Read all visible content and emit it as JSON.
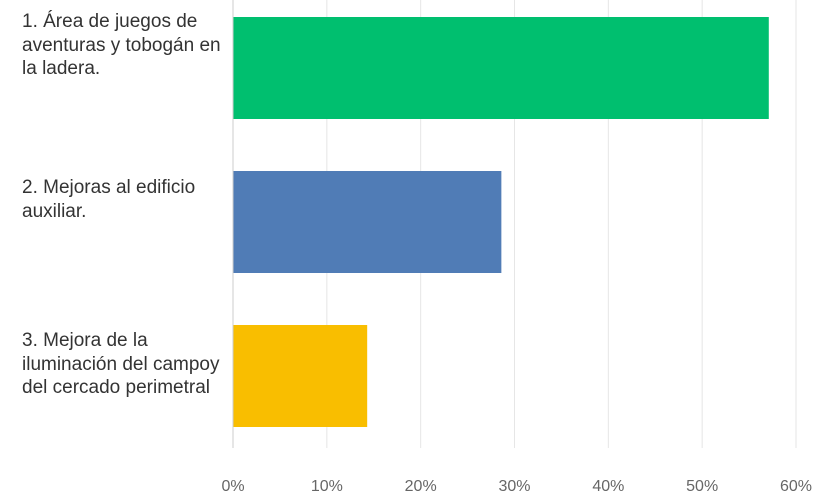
{
  "chart_data": {
    "type": "bar",
    "orientation": "horizontal",
    "categories": [
      "1. Área de juegos de aventuras y tobogán en la ladera.",
      "2. Mejoras al edificio auxiliar.",
      "3. Mejora de la iluminación del campoy del cercado perimetral"
    ],
    "values": [
      57.1,
      28.6,
      14.3
    ],
    "unit": "%",
    "xlim": [
      0,
      60
    ],
    "xticks": [
      0,
      10,
      20,
      30,
      40,
      50,
      60
    ],
    "xtick_labels": [
      "0%",
      "10%",
      "20%",
      "30%",
      "40%",
      "50%",
      "60%"
    ],
    "colors": [
      "#00bf6f",
      "#507cb6",
      "#f9be00"
    ],
    "grid": true,
    "legend": "none",
    "title": "",
    "xlabel": "",
    "ylabel": ""
  }
}
